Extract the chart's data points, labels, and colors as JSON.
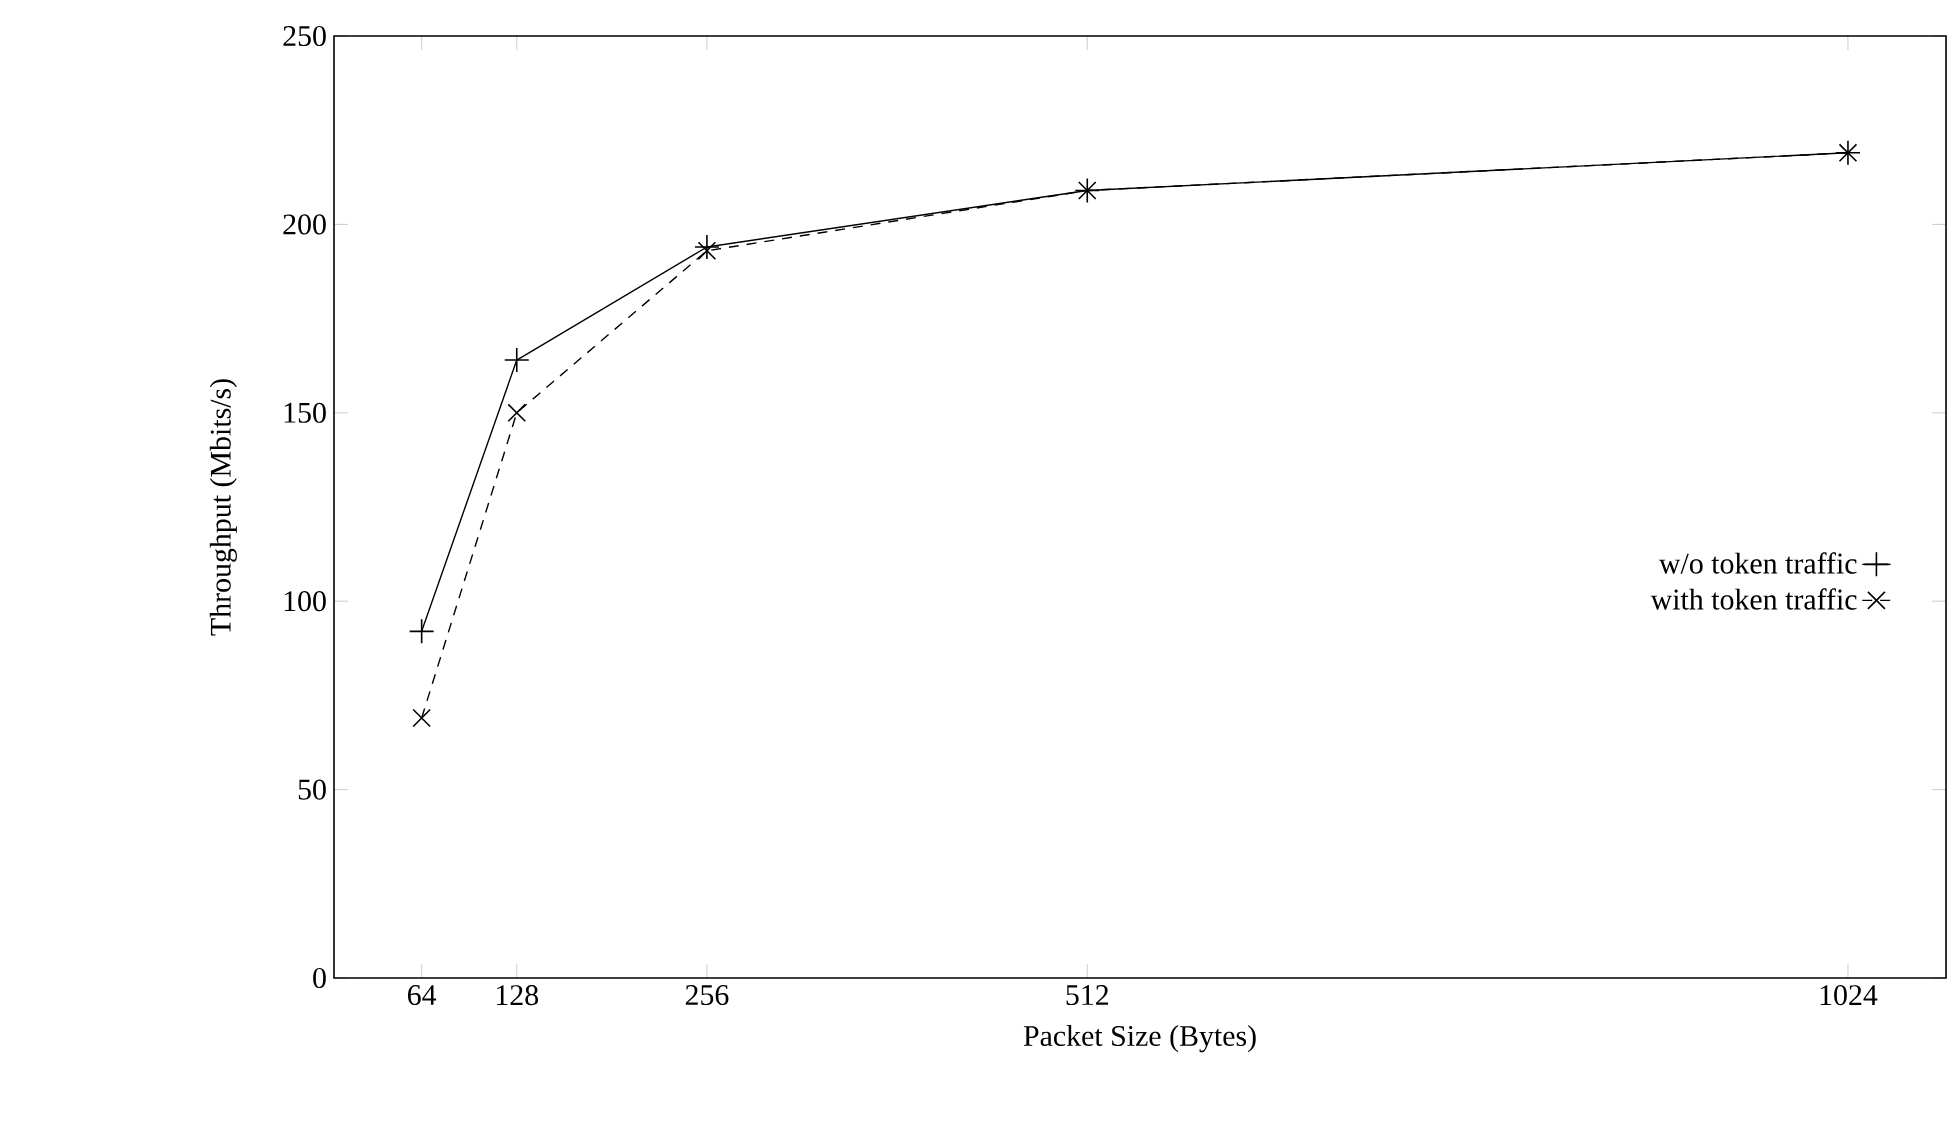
{
  "chart_data": {
    "type": "line",
    "xlabel": "Packet Size (Bytes)",
    "ylabel": "Throughput (Mbits/s)",
    "x": [
      64,
      128,
      256,
      512,
      1024
    ],
    "series": [
      {
        "name": "w/o token traffic",
        "color": "#000000",
        "values": [
          92,
          164,
          194,
          209,
          219
        ],
        "marker": "plus",
        "line_style": "solid"
      },
      {
        "name": "with token traffic",
        "color": "#000000",
        "values": [
          69,
          150,
          193,
          209,
          219
        ],
        "marker": "cross",
        "line_style": "dashed"
      }
    ],
    "xlim": [
      5,
      1090
    ],
    "ylim": [
      0,
      250
    ],
    "xticks": [
      64,
      128,
      256,
      512,
      1024
    ],
    "yticks": [
      0,
      50,
      100,
      150,
      200,
      250
    ],
    "legend": "right",
    "grid": false
  }
}
